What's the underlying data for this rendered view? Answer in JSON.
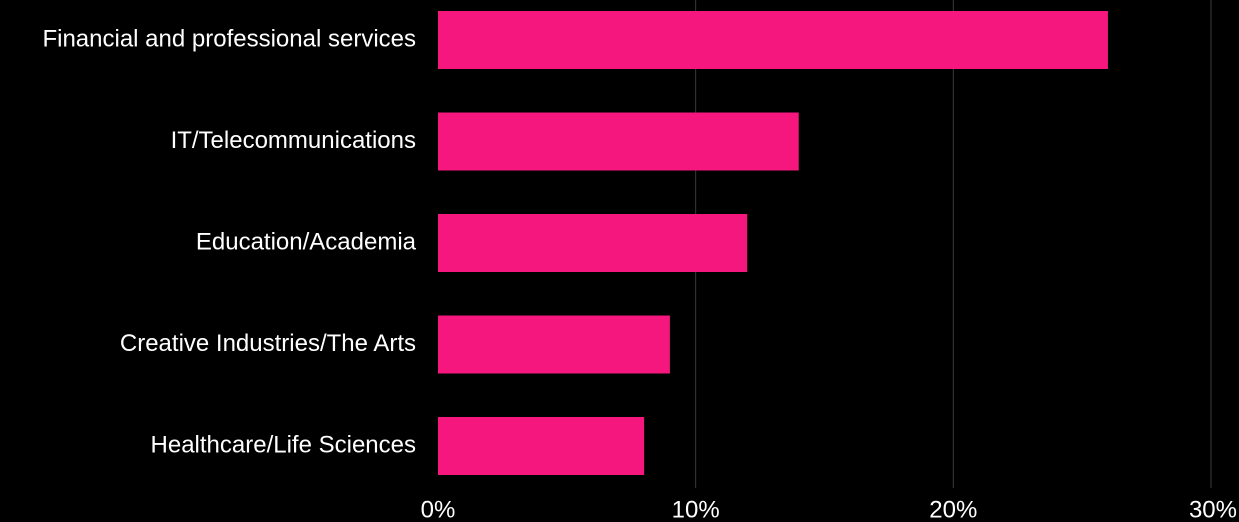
{
  "chart_data": {
    "type": "bar",
    "orientation": "horizontal",
    "categories": [
      "Financial and professional services",
      "IT/Telecommunications",
      "Education/Academia",
      "Creative Industries/The Arts",
      "Healthcare/Life Sciences"
    ],
    "values": [
      26,
      14,
      12,
      9,
      8
    ],
    "unit": "%",
    "xlim": [
      0,
      30
    ],
    "xticks": [
      "0%",
      "10%",
      "20%",
      "30%"
    ],
    "grid": "vertical",
    "legend": "none",
    "title": "",
    "xlabel": "",
    "ylabel": ""
  },
  "colors": {
    "background": "#000000",
    "bar": "#f5167e",
    "text": "#ffffff",
    "grid": "#3a3a3a"
  }
}
